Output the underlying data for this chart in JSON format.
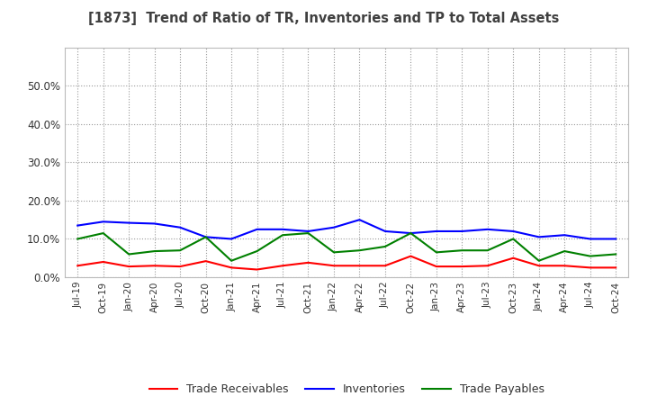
{
  "title": "[1873]  Trend of Ratio of TR, Inventories and TP to Total Assets",
  "x_labels": [
    "Jul-19",
    "Oct-19",
    "Jan-20",
    "Apr-20",
    "Jul-20",
    "Oct-20",
    "Jan-21",
    "Apr-21",
    "Jul-21",
    "Oct-21",
    "Jan-22",
    "Apr-22",
    "Jul-22",
    "Oct-22",
    "Jan-23",
    "Apr-23",
    "Jul-23",
    "Oct-23",
    "Jan-24",
    "Apr-24",
    "Jul-24",
    "Oct-24"
  ],
  "trade_receivables": [
    0.03,
    0.04,
    0.028,
    0.03,
    0.028,
    0.042,
    0.025,
    0.02,
    0.03,
    0.038,
    0.03,
    0.03,
    0.03,
    0.055,
    0.028,
    0.028,
    0.03,
    0.05,
    0.03,
    0.03,
    0.025,
    0.025
  ],
  "inventories": [
    0.135,
    0.145,
    0.142,
    0.14,
    0.13,
    0.105,
    0.1,
    0.125,
    0.125,
    0.12,
    0.13,
    0.15,
    0.12,
    0.115,
    0.12,
    0.12,
    0.125,
    0.12,
    0.105,
    0.11,
    0.1,
    0.1
  ],
  "trade_payables": [
    0.1,
    0.115,
    0.06,
    0.068,
    0.07,
    0.105,
    0.043,
    0.068,
    0.11,
    0.115,
    0.065,
    0.07,
    0.08,
    0.115,
    0.065,
    0.07,
    0.07,
    0.1,
    0.043,
    0.068,
    0.055,
    0.06
  ],
  "color_tr": "#ff0000",
  "color_inv": "#0000ff",
  "color_tp": "#008000",
  "ylim": [
    0.0,
    0.6
  ],
  "yticks": [
    0.0,
    0.1,
    0.2,
    0.3,
    0.4,
    0.5
  ],
  "background_color": "#ffffff",
  "grid_color": "#999999",
  "title_color": "#404040",
  "legend_labels": [
    "Trade Receivables",
    "Inventories",
    "Trade Payables"
  ]
}
